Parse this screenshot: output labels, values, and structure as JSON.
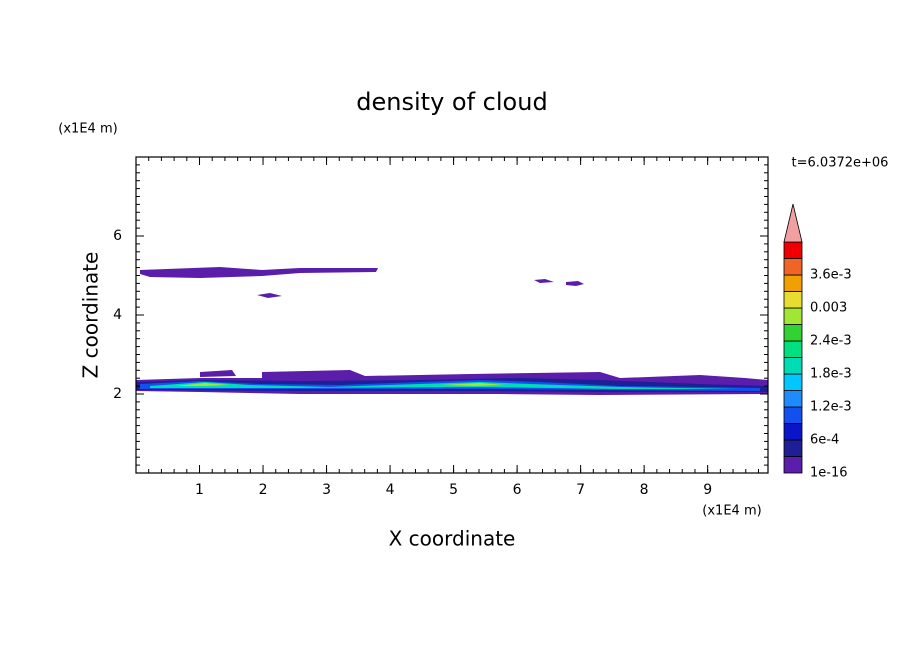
{
  "chart_data": {
    "type": "contour",
    "title": "density of cloud",
    "x_label": "X coordinate",
    "y_label": "Z coordinate",
    "x_unit": "(x1E4 m)",
    "y_unit": "(x1E4 m)",
    "time_label": "t=6.0372e+06",
    "xlim": [
      0,
      9.95
    ],
    "ylim": [
      0,
      8
    ],
    "xticks": [
      1,
      2,
      3,
      4,
      5,
      6,
      7,
      8,
      9
    ],
    "yticks": [
      2,
      4,
      6
    ],
    "colorbar": {
      "levels": [
        {
          "value": 1e-16,
          "label": "1e-16"
        },
        {
          "value": 0.0006,
          "label": "6e-4"
        },
        {
          "value": 0.0012,
          "label": "1.2e-3"
        },
        {
          "value": 0.0018,
          "label": "1.8e-3"
        },
        {
          "value": 0.0024,
          "label": "2.4e-3"
        },
        0.003,
        {
          "value": 0.0036,
          "label": "3.6e-3"
        }
      ],
      "colors": [
        "#5a1eaa",
        "#1e1e96",
        "#0a14c8",
        "#1450f0",
        "#1e8cff",
        "#00c8ff",
        "#00dcb4",
        "#00e080",
        "#32d232",
        "#a0e632",
        "#e6dc32",
        "#f0a000",
        "#f06428",
        "#f00000"
      ],
      "over_color": "#f0a0a0"
    }
  }
}
